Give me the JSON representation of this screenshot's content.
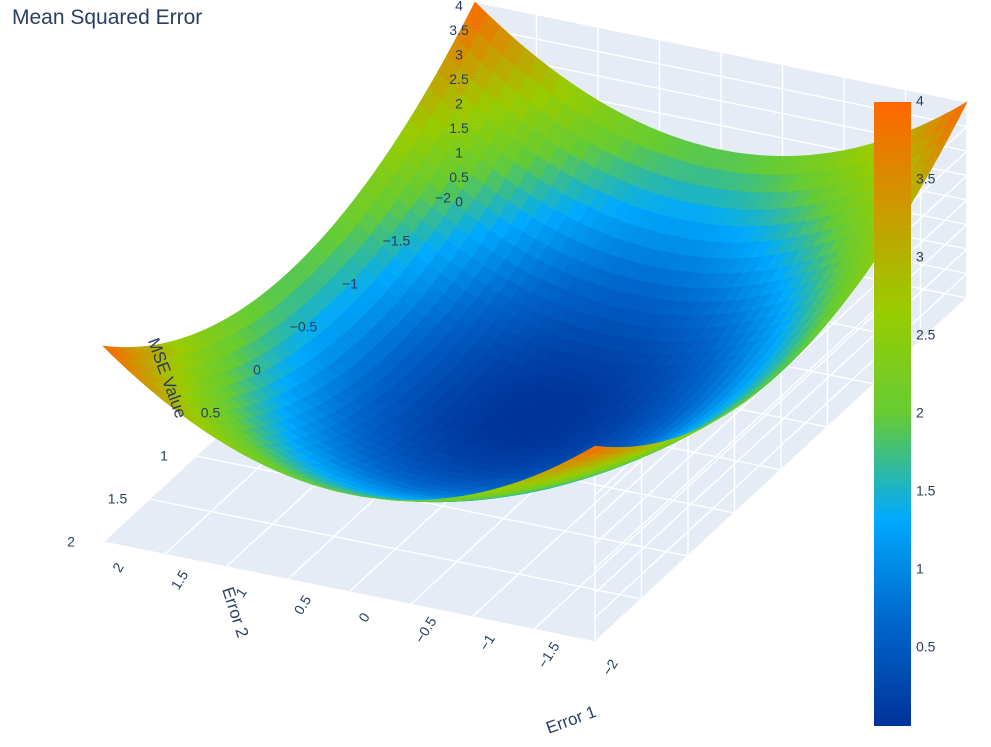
{
  "chart_data": {
    "type": "surface",
    "title": "Mean Squared Error",
    "function": "z = (x^2 + y^2) / 2",
    "x_axis": {
      "label": "Error 1",
      "range": [
        -2,
        2
      ],
      "ticks": [
        "2",
        "1.5",
        "1",
        "0.5",
        "0",
        "−0.5",
        "−1",
        "−1.5",
        "−2"
      ],
      "tick_values": [
        2,
        1.5,
        1,
        0.5,
        0,
        -0.5,
        -1,
        -1.5,
        -2
      ]
    },
    "y_axis": {
      "label": "Error 2",
      "range": [
        -2,
        2
      ],
      "ticks": [
        "−2",
        "−1.5",
        "−1",
        "−0.5",
        "0",
        "0.5",
        "1",
        "1.5",
        "2"
      ],
      "tick_values": [
        -2,
        -1.5,
        -1,
        -0.5,
        0,
        0.5,
        1,
        1.5,
        2
      ]
    },
    "z_axis": {
      "label": "MSE Value",
      "range": [
        0,
        4
      ],
      "ticks": [
        "0",
        "0.5",
        "1",
        "1.5",
        "2",
        "2.5",
        "3",
        "3.5",
        "4"
      ],
      "tick_values": [
        0,
        0.5,
        1,
        1.5,
        2,
        2.5,
        3,
        3.5,
        4
      ]
    },
    "colorbar": {
      "ticks": [
        "4",
        "3.5",
        "3",
        "2.5",
        "2",
        "1.5",
        "1",
        "0.5"
      ],
      "tick_values": [
        4,
        3.5,
        3,
        2.5,
        2,
        1.5,
        1,
        0.5
      ],
      "range": [
        0,
        4
      ],
      "colorscale": [
        "#003399",
        "#0066cc",
        "#00aaff",
        "#66cc33",
        "#99cc00",
        "#cc9900",
        "#ff6600"
      ]
    },
    "surface_samples": {
      "x": [
        -2,
        -1,
        0,
        1,
        2
      ],
      "y": [
        -2,
        -1,
        0,
        1,
        2
      ],
      "z": [
        [
          4,
          2.5,
          2,
          2.5,
          4
        ],
        [
          2.5,
          1,
          0.5,
          1,
          2.5
        ],
        [
          2,
          0.5,
          0,
          0.5,
          2
        ],
        [
          2.5,
          1,
          0.5,
          1,
          2.5
        ],
        [
          4,
          2.5,
          2,
          2.5,
          4
        ]
      ]
    }
  }
}
